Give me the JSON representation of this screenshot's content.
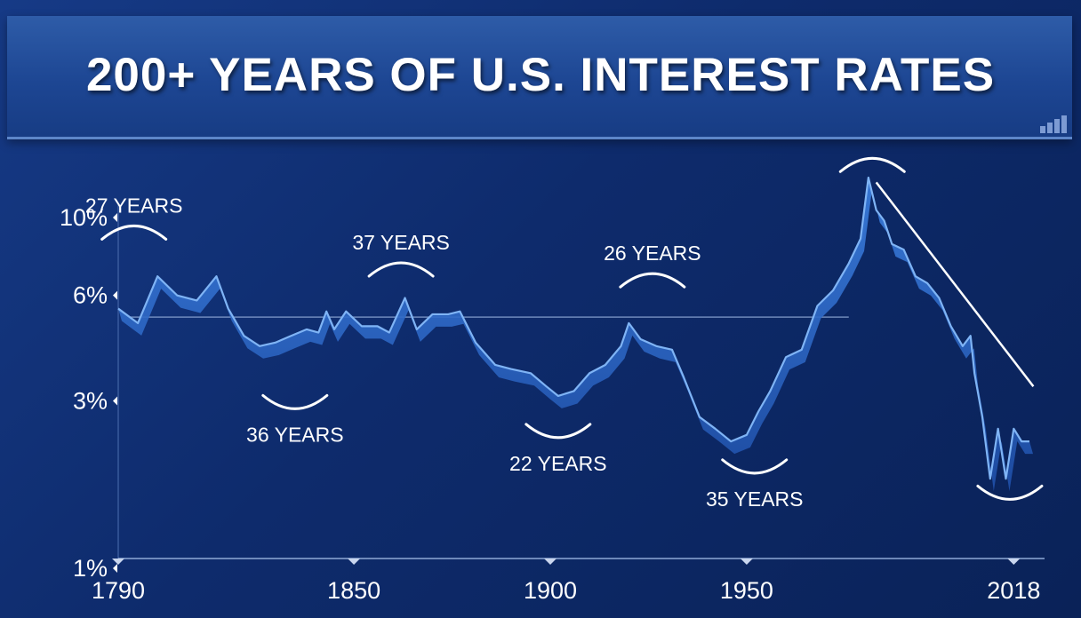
{
  "title": "200+ YEARS OF U.S. INTEREST RATES",
  "colors": {
    "background": "#0e2b6c",
    "line": "#6fa8f0",
    "ribbon": "#2f6fd0",
    "annotation": "#ffffff"
  },
  "chart_data": {
    "type": "line",
    "title": "200+ YEARS OF U.S. INTEREST RATES",
    "xlabel": "",
    "ylabel": "",
    "y_scale": "log",
    "ylim": [
      1,
      13
    ],
    "xlim": [
      1790,
      2022
    ],
    "grid": false,
    "x_ticks": [
      "1790",
      "1850",
      "1900",
      "1950",
      "2018"
    ],
    "y_ticks": [
      "10%",
      "6%",
      "3%",
      "1%"
    ],
    "reference_level": 5.2,
    "series": [
      {
        "values": [
          [
            1790,
            5.5
          ],
          [
            1795,
            5.0
          ],
          [
            1800,
            6.8
          ],
          [
            1805,
            6.0
          ],
          [
            1810,
            5.8
          ],
          [
            1815,
            6.8
          ],
          [
            1818,
            5.5
          ],
          [
            1822,
            4.6
          ],
          [
            1826,
            4.3
          ],
          [
            1830,
            4.4
          ],
          [
            1834,
            4.6
          ],
          [
            1838,
            4.8
          ],
          [
            1841,
            4.7
          ],
          [
            1843,
            5.4
          ],
          [
            1845,
            4.8
          ],
          [
            1848,
            5.4
          ],
          [
            1852,
            4.9
          ],
          [
            1856,
            4.9
          ],
          [
            1859,
            4.7
          ],
          [
            1863,
            5.9
          ],
          [
            1866,
            4.8
          ],
          [
            1870,
            5.3
          ],
          [
            1874,
            5.3
          ],
          [
            1877,
            5.4
          ],
          [
            1881,
            4.4
          ],
          [
            1886,
            3.8
          ],
          [
            1890,
            3.7
          ],
          [
            1895,
            3.6
          ],
          [
            1899,
            3.3
          ],
          [
            1902,
            3.1
          ],
          [
            1906,
            3.2
          ],
          [
            1910,
            3.6
          ],
          [
            1914,
            3.8
          ],
          [
            1918,
            4.3
          ],
          [
            1920,
            5.0
          ],
          [
            1923,
            4.5
          ],
          [
            1927,
            4.3
          ],
          [
            1931,
            4.2
          ],
          [
            1934,
            3.5
          ],
          [
            1938,
            2.7
          ],
          [
            1942,
            2.5
          ],
          [
            1946,
            2.3
          ],
          [
            1950,
            2.4
          ],
          [
            1953,
            2.8
          ],
          [
            1956,
            3.2
          ],
          [
            1960,
            4.0
          ],
          [
            1964,
            4.2
          ],
          [
            1968,
            5.6
          ],
          [
            1972,
            6.2
          ],
          [
            1976,
            7.4
          ],
          [
            1979,
            8.7
          ],
          [
            1981,
            13.0
          ],
          [
            1983,
            10.5
          ],
          [
            1985,
            9.8
          ],
          [
            1987,
            8.4
          ],
          [
            1990,
            8.1
          ],
          [
            1993,
            6.8
          ],
          [
            1996,
            6.5
          ],
          [
            1999,
            5.9
          ],
          [
            2002,
            4.9
          ],
          [
            2005,
            4.3
          ],
          [
            2007,
            4.6
          ],
          [
            2008,
            3.6
          ],
          [
            2010,
            2.7
          ],
          [
            2012,
            1.8
          ],
          [
            2014,
            2.5
          ],
          [
            2016,
            1.8
          ],
          [
            2018,
            2.5
          ],
          [
            2020,
            2.3
          ],
          [
            2022,
            2.3
          ]
        ]
      }
    ],
    "annotations": [
      {
        "text": "27 YEARS",
        "year": 1794,
        "rate": 9.3,
        "arc": "peak"
      },
      {
        "text": "36 YEARS",
        "year": 1835,
        "rate": 2.9,
        "arc": "trough"
      },
      {
        "text": "37 YEARS",
        "year": 1862,
        "rate": 7.3,
        "arc": "peak"
      },
      {
        "text": "22 YEARS",
        "year": 1902,
        "rate": 2.4,
        "arc": "trough"
      },
      {
        "text": "26 YEARS",
        "year": 1926,
        "rate": 6.8,
        "arc": "peak"
      },
      {
        "text": "35 YEARS",
        "year": 1952,
        "rate": 1.9,
        "arc": "trough"
      },
      {
        "text": "",
        "year": 1982,
        "rate": 14.5,
        "arc": "peak"
      },
      {
        "text": "",
        "year": 2017,
        "rate": 1.6,
        "arc": "trough"
      }
    ],
    "trend_line": {
      "from": [
        1983,
        12.6
      ],
      "to": [
        2023,
        3.3
      ]
    }
  }
}
